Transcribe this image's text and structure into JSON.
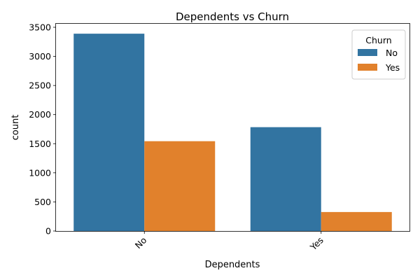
{
  "chart_data": {
    "type": "bar",
    "title": "Dependents vs Churn",
    "xlabel": "Dependents",
    "ylabel": "count",
    "categories": [
      "No",
      "Yes"
    ],
    "series": [
      {
        "name": "No",
        "values": [
          3390,
          1784
        ],
        "color": "#3274a1"
      },
      {
        "name": "Yes",
        "values": [
          1543,
          326
        ],
        "color": "#e1812c"
      }
    ],
    "ylim": [
      0,
      3560
    ],
    "yticks": [
      0,
      500,
      1000,
      1500,
      2000,
      2500,
      3000,
      3500
    ],
    "grid": false,
    "legend": {
      "title": "Churn",
      "placement": "top-right"
    }
  }
}
